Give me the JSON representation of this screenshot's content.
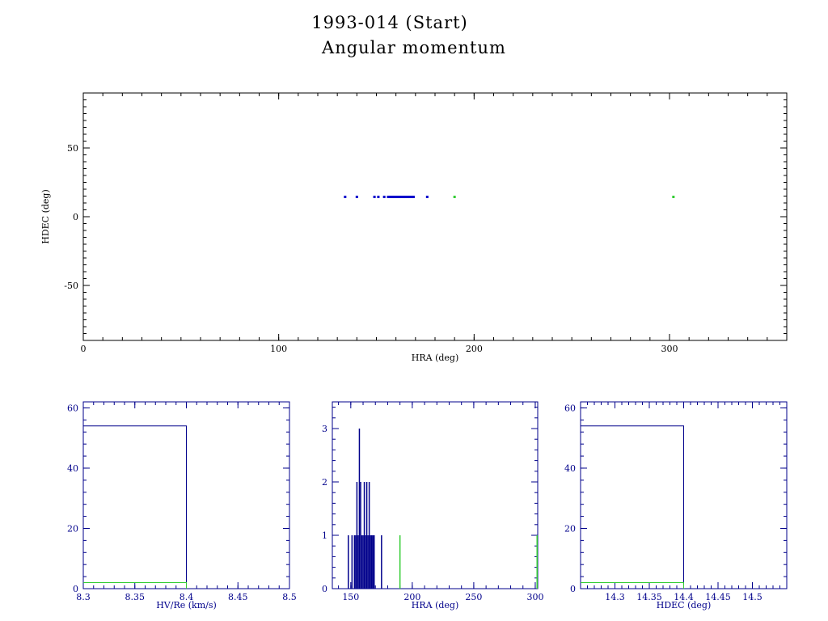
{
  "title_line1": "1993-014 (Start)",
  "title_line2": "Angular momentum",
  "colors": {
    "primary": "#0000aa",
    "secondary": "#33cc33",
    "axis_main": "#000000",
    "axis_hist": "#00008b"
  },
  "chart_data": [
    {
      "id": "main-scatter",
      "type": "scatter",
      "xlabel": "HRA (deg)",
      "ylabel": "HDEC (deg)",
      "xlim": [
        0,
        360
      ],
      "ylim": [
        -90,
        90
      ],
      "xticks": [
        0,
        100,
        200,
        300
      ],
      "yticks": [
        -50,
        0,
        50
      ],
      "series": [
        {
          "color": "#0000cc",
          "x": [
            134,
            140,
            149,
            151,
            154,
            156,
            157,
            158,
            159,
            160,
            161,
            162,
            163,
            164,
            165,
            166,
            167,
            168,
            169,
            176
          ],
          "y": [
            14.4,
            14.4,
            14.4,
            14.4,
            14.4,
            14.4,
            14.4,
            14.4,
            14.4,
            14.4,
            14.4,
            14.4,
            14.4,
            14.4,
            14.4,
            14.4,
            14.4,
            14.4,
            14.4,
            14.4
          ]
        },
        {
          "color": "#33cc33",
          "x": [
            190,
            302
          ],
          "y": [
            14.4,
            14.4
          ]
        }
      ]
    },
    {
      "id": "hist-hv",
      "type": "histogram",
      "xlabel": "HV/Re (km/s)",
      "xlim": [
        8.3,
        8.5
      ],
      "ylim": [
        0,
        62
      ],
      "xticks": [
        8.3,
        8.35,
        8.4,
        8.45,
        8.5
      ],
      "yticks": [
        0,
        20,
        40,
        60
      ],
      "series": [
        {
          "color": "#00008b",
          "bins": [
            {
              "x0": 8.3,
              "x1": 8.4,
              "count": 54
            }
          ]
        },
        {
          "color": "#33cc33",
          "bins": [
            {
              "x0": 8.3,
              "x1": 8.4,
              "count": 2
            }
          ]
        }
      ]
    },
    {
      "id": "hist-hra",
      "type": "histogram",
      "xlabel": "HRA (deg)",
      "xlim": [
        135,
        302
      ],
      "ylim": [
        0,
        3.5
      ],
      "xticks": [
        150,
        200,
        250,
        300
      ],
      "yticks": [
        0,
        1,
        2,
        3
      ],
      "series": [
        {
          "color": "#00008b",
          "spikes": [
            {
              "x": 148,
              "count": 1
            },
            {
              "x": 151,
              "count": 1
            },
            {
              "x": 153,
              "count": 1
            },
            {
              "x": 154,
              "count": 1
            },
            {
              "x": 155,
              "count": 2
            },
            {
              "x": 156,
              "count": 1
            },
            {
              "x": 157,
              "count": 3
            },
            {
              "x": 158,
              "count": 2
            },
            {
              "x": 159,
              "count": 1
            },
            {
              "x": 160,
              "count": 1
            },
            {
              "x": 161,
              "count": 2
            },
            {
              "x": 162,
              "count": 1
            },
            {
              "x": 163,
              "count": 2
            },
            {
              "x": 164,
              "count": 1
            },
            {
              "x": 165,
              "count": 2
            },
            {
              "x": 166,
              "count": 1
            },
            {
              "x": 167,
              "count": 1
            },
            {
              "x": 168,
              "count": 1
            },
            {
              "x": 169,
              "count": 1
            },
            {
              "x": 175,
              "count": 1
            }
          ]
        },
        {
          "color": "#33cc33",
          "spikes": [
            {
              "x": 190,
              "count": 1
            },
            {
              "x": 301.5,
              "count": 1
            }
          ]
        }
      ]
    },
    {
      "id": "hist-hdec",
      "type": "histogram",
      "xlabel": "HDEC (deg)",
      "xlim": [
        14.25,
        14.55
      ],
      "ylim": [
        0,
        62
      ],
      "xticks": [
        14.3,
        14.35,
        14.4,
        14.45,
        14.5
      ],
      "yticks": [
        0,
        20,
        40,
        60
      ],
      "series": [
        {
          "color": "#00008b",
          "bins": [
            {
              "x0": 14.25,
              "x1": 14.4,
              "count": 54
            }
          ]
        },
        {
          "color": "#33cc33",
          "bins": [
            {
              "x0": 14.25,
              "x1": 14.4,
              "count": 2
            }
          ]
        }
      ]
    }
  ]
}
